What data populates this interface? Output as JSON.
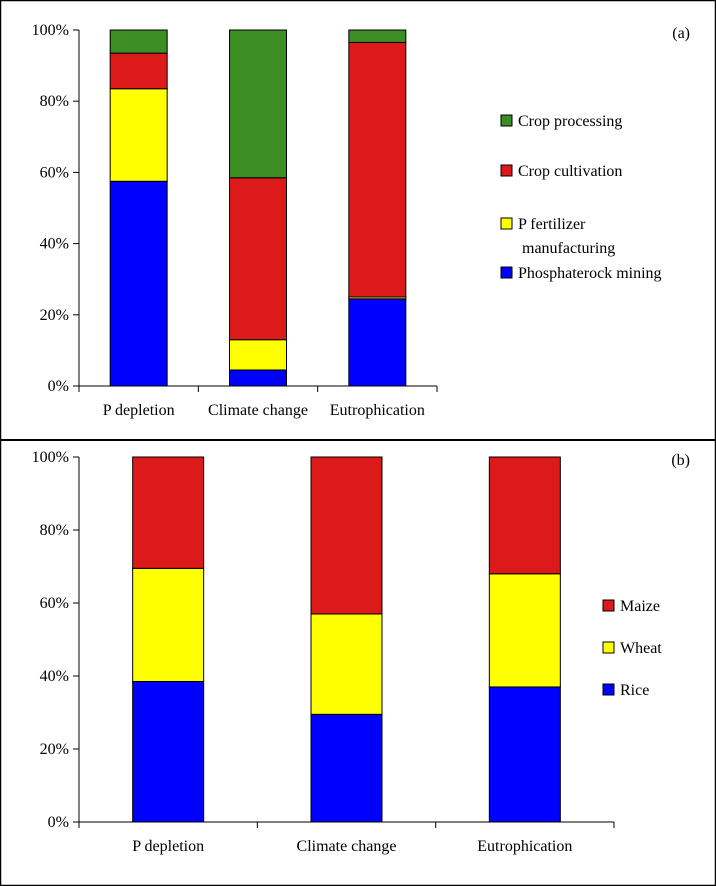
{
  "chart_data": [
    {
      "type": "bar",
      "stacked": true,
      "panel_label": "(a)",
      "categories": [
        "P depletion",
        "Climate change",
        "Eutrophication"
      ],
      "ylim": [
        0,
        100
      ],
      "yticks": [
        "0%",
        "20%",
        "40%",
        "60%",
        "80%",
        "100%"
      ],
      "grid": false,
      "legend_position": "right",
      "series": [
        {
          "name": "Phosphaterock mining",
          "legend_lines": [
            "Phosphaterock mining"
          ],
          "color": "#0000ff",
          "values": [
            57.5,
            4.5,
            24.5
          ]
        },
        {
          "name": "P fertilizer manufacturing",
          "legend_lines": [
            "P fertilizer",
            "manufacturing"
          ],
          "color": "#ffff00",
          "values": [
            26,
            8.5,
            0.5
          ]
        },
        {
          "name": "Crop cultivation",
          "legend_lines": [
            "Crop cultivation"
          ],
          "color": "#dd1a1a",
          "values": [
            10,
            45.5,
            71.5
          ]
        },
        {
          "name": "Crop processing",
          "legend_lines": [
            "Crop processing"
          ],
          "color": "#3c8d23",
          "values": [
            6.5,
            41.5,
            3.5
          ]
        }
      ]
    },
    {
      "type": "bar",
      "stacked": true,
      "panel_label": "(b)",
      "categories": [
        "P depletion",
        "Climate change",
        "Eutrophication"
      ],
      "ylim": [
        0,
        100
      ],
      "yticks": [
        "0%",
        "20%",
        "40%",
        "60%",
        "80%",
        "100%"
      ],
      "grid": false,
      "legend_position": "right",
      "series": [
        {
          "name": "Rice",
          "legend_lines": [
            "Rice"
          ],
          "color": "#0000ff",
          "values": [
            38.5,
            29.5,
            37
          ]
        },
        {
          "name": "Wheat",
          "legend_lines": [
            "Wheat"
          ],
          "color": "#ffff00",
          "values": [
            31,
            27.5,
            31
          ]
        },
        {
          "name": "Maize",
          "legend_lines": [
            "Maize"
          ],
          "color": "#dd1a1a",
          "values": [
            30.5,
            43,
            32
          ]
        }
      ]
    }
  ]
}
